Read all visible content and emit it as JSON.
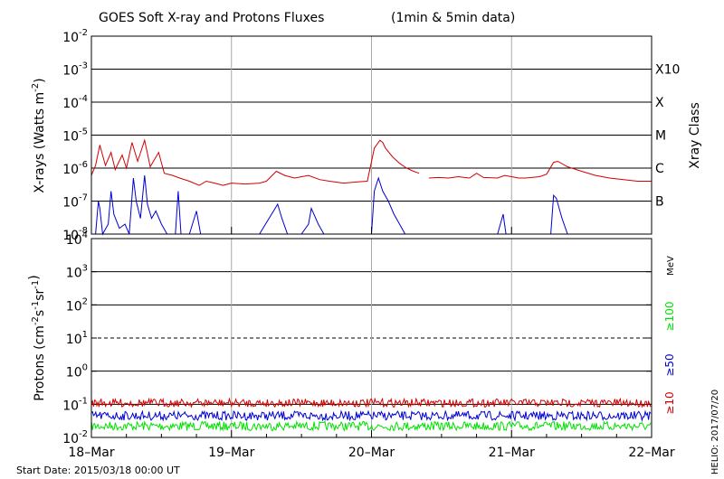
{
  "title": "GOES Soft X-ray and Protons Fluxes",
  "subtitle": "(1min & 5min data)",
  "start_date_label": "Start Date:",
  "start_date": "2015/03/18 00:00 UT",
  "credit": "HELIO: 2017/07/20",
  "colors": {
    "red": "#d10000",
    "blue": "#0000d2",
    "green": "#00e000",
    "grid": "#000000",
    "day": "#a8a8a8"
  },
  "chart_data": [
    {
      "type": "line",
      "name": "xray",
      "ylabel_main": "X-rays (Watts m",
      "ylabel_exp": "-2",
      "ylabel_end": ")",
      "yscale": "log",
      "ylim": [
        1e-08,
        0.01
      ],
      "y_tick_labels": [
        {
          "base": "10",
          "exp": "-8"
        },
        {
          "base": "10",
          "exp": "-7"
        },
        {
          "base": "10",
          "exp": "-6"
        },
        {
          "base": "10",
          "exp": "-5"
        },
        {
          "base": "10",
          "exp": "-4"
        },
        {
          "base": "10",
          "exp": "-3"
        },
        {
          "base": "10",
          "exp": "-2"
        }
      ],
      "right_axis_label": "Xray Class",
      "class_labels": [
        "B",
        "C",
        "M",
        "X",
        "X10"
      ],
      "series": [
        {
          "color": "red",
          "points": [
            [
              0.0,
              6e-07
            ],
            [
              0.03,
              1.2e-06
            ],
            [
              0.06,
              5e-06
            ],
            [
              0.1,
              1.2e-06
            ],
            [
              0.14,
              3e-06
            ],
            [
              0.17,
              9e-07
            ],
            [
              0.22,
              2.5e-06
            ],
            [
              0.25,
              1e-06
            ],
            [
              0.29,
              6e-06
            ],
            [
              0.33,
              1.6e-06
            ],
            [
              0.38,
              7e-06
            ],
            [
              0.42,
              1.1e-06
            ],
            [
              0.48,
              3e-06
            ],
            [
              0.52,
              7e-07
            ],
            [
              0.58,
              6e-07
            ],
            [
              0.63,
              5e-07
            ],
            [
              0.7,
              4e-07
            ],
            [
              0.77,
              3e-07
            ],
            [
              0.82,
              4e-07
            ],
            [
              0.88,
              3.5e-07
            ],
            [
              0.94,
              3e-07
            ],
            [
              1.0,
              3.5e-07
            ],
            [
              1.1,
              3.3e-07
            ],
            [
              1.2,
              3.5e-07
            ],
            [
              1.25,
              4e-07
            ],
            [
              1.32,
              8e-07
            ],
            [
              1.38,
              6e-07
            ],
            [
              1.45,
              5e-07
            ],
            [
              1.55,
              6e-07
            ],
            [
              1.63,
              4.5e-07
            ],
            [
              1.7,
              4e-07
            ],
            [
              1.8,
              3.5e-07
            ],
            [
              1.9,
              3.8e-07
            ],
            [
              1.97,
              4e-07
            ],
            [
              2.02,
              4e-06
            ],
            [
              2.06,
              7e-06
            ],
            [
              2.08,
              6e-06
            ],
            [
              2.1,
              4e-06
            ],
            [
              2.15,
              2.2e-06
            ],
            [
              2.2,
              1.4e-06
            ],
            [
              2.25,
              1e-06
            ],
            [
              2.3,
              8e-07
            ],
            [
              2.34,
              7e-07
            ]
          ]
        },
        {
          "color": "red",
          "points": [
            [
              2.41,
              5e-07
            ],
            [
              2.48,
              5.2e-07
            ],
            [
              2.55,
              5e-07
            ],
            [
              2.62,
              5.5e-07
            ],
            [
              2.7,
              5e-07
            ],
            [
              2.75,
              7e-07
            ],
            [
              2.8,
              5.2e-07
            ],
            [
              2.9,
              5e-07
            ],
            [
              2.95,
              6e-07
            ],
            [
              3.0,
              5.5e-07
            ],
            [
              3.05,
              5e-07
            ],
            [
              3.1,
              5e-07
            ],
            [
              3.2,
              5.5e-07
            ],
            [
              3.25,
              6.5e-07
            ],
            [
              3.3,
              1.5e-06
            ],
            [
              3.33,
              1.6e-06
            ],
            [
              3.4,
              1.1e-06
            ],
            [
              3.5,
              8e-07
            ],
            [
              3.6,
              6e-07
            ],
            [
              3.7,
              5e-07
            ],
            [
              3.8,
              4.5e-07
            ],
            [
              3.9,
              4e-07
            ],
            [
              4.0,
              4e-07
            ]
          ]
        },
        {
          "color": "blue",
          "points": [
            [
              0.0,
              1e-08
            ],
            [
              0.03,
              1e-08
            ],
            [
              0.05,
              1e-07
            ],
            [
              0.06,
              6e-08
            ],
            [
              0.08,
              1e-08
            ],
            [
              0.12,
              2e-08
            ],
            [
              0.14,
              2e-07
            ],
            [
              0.16,
              4e-08
            ],
            [
              0.2,
              1.5e-08
            ],
            [
              0.24,
              2e-08
            ],
            [
              0.27,
              1e-08
            ],
            [
              0.3,
              5e-07
            ],
            [
              0.32,
              1e-07
            ],
            [
              0.35,
              3e-08
            ],
            [
              0.38,
              6e-07
            ],
            [
              0.4,
              8e-08
            ],
            [
              0.43,
              3e-08
            ],
            [
              0.46,
              5e-08
            ],
            [
              0.5,
              2e-08
            ],
            [
              0.54,
              1e-08
            ],
            [
              0.6,
              1e-08
            ],
            [
              0.62,
              2e-07
            ],
            [
              0.64,
              1e-08
            ],
            [
              0.7,
              1e-08
            ],
            [
              0.75,
              5e-08
            ],
            [
              0.78,
              1e-08
            ],
            [
              0.9,
              1e-08
            ],
            [
              1.0,
              1e-08
            ],
            [
              1.2,
              1e-08
            ],
            [
              1.33,
              8e-08
            ],
            [
              1.36,
              3e-08
            ],
            [
              1.4,
              1e-08
            ],
            [
              1.5,
              1e-08
            ],
            [
              1.55,
              2e-08
            ],
            [
              1.57,
              6e-08
            ],
            [
              1.62,
              2e-08
            ],
            [
              1.66,
              1e-08
            ],
            [
              1.8,
              1e-08
            ],
            [
              2.0,
              1e-08
            ],
            [
              2.02,
              2e-07
            ],
            [
              2.05,
              5e-07
            ],
            [
              2.08,
              2e-07
            ],
            [
              2.12,
              1e-07
            ],
            [
              2.16,
              4e-08
            ],
            [
              2.2,
              2e-08
            ],
            [
              2.24,
              1e-08
            ],
            [
              2.5,
              1e-08
            ],
            [
              2.9,
              1e-08
            ],
            [
              2.94,
              4e-08
            ],
            [
              2.96,
              1e-08
            ],
            [
              3.2,
              1e-08
            ],
            [
              3.28,
              1e-08
            ],
            [
              3.3,
              1.5e-07
            ],
            [
              3.32,
              1.2e-07
            ],
            [
              3.36,
              3e-08
            ],
            [
              3.4,
              1e-08
            ]
          ]
        }
      ]
    },
    {
      "type": "line",
      "name": "protons",
      "ylabel_main": "Protons (cm",
      "ylabel_parts": [
        "-2",
        "s",
        "-1",
        "sr",
        "-1"
      ],
      "ylabel_end": ")",
      "yscale": "log",
      "ylim": [
        0.01,
        10000
      ],
      "y_tick_labels": [
        {
          "base": "10",
          "exp": "-2"
        },
        {
          "base": "10",
          "exp": "-1"
        },
        {
          "base": "10",
          "exp": "0"
        },
        {
          "base": "10",
          "exp": "1"
        },
        {
          "base": "10",
          "exp": "2"
        },
        {
          "base": "10",
          "exp": "3"
        },
        {
          "base": "10",
          "exp": "4"
        }
      ],
      "unit_label": "MeV",
      "legend": [
        {
          "label": "≥100",
          "color": "green"
        },
        {
          "label": "≥50",
          "color": "blue"
        },
        {
          "label": "≥10",
          "color": "red"
        }
      ],
      "threshold_line": 10,
      "series": [
        {
          "name": "≥10",
          "color": "red",
          "level": 0.11
        },
        {
          "name": "≥50",
          "color": "blue",
          "level": 0.045
        },
        {
          "name": "≥100",
          "color": "green",
          "level": 0.022
        }
      ]
    }
  ],
  "x_axis": {
    "ticks": [
      "18–Mar",
      "19–Mar",
      "20–Mar",
      "21–Mar",
      "22–Mar"
    ],
    "range_days": [
      0,
      4
    ]
  }
}
